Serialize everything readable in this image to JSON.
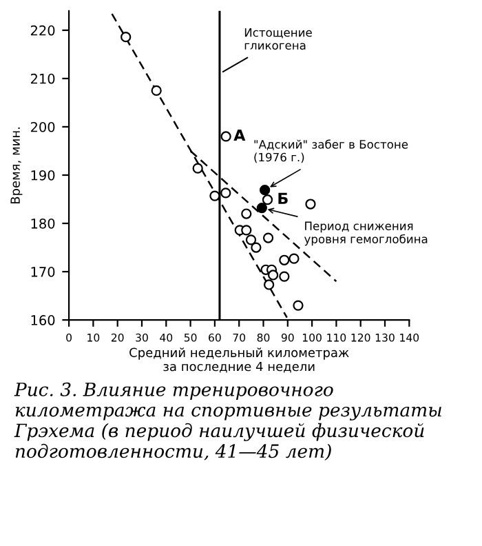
{
  "chart_data": {
    "type": "scatter",
    "xlabel": "Средний недельный километраж\nза последние 4 недели",
    "ylabel": "Время, мин.",
    "xlim": [
      0,
      140
    ],
    "xticks": [
      0,
      10,
      20,
      30,
      40,
      50,
      60,
      70,
      80,
      90,
      100,
      110,
      120,
      130,
      140
    ],
    "ylim": [
      160,
      224
    ],
    "yticks": [
      160,
      170,
      180,
      190,
      200,
      210,
      220
    ],
    "grid": false,
    "marker": "circle",
    "series": [
      {
        "color": "#ffffff",
        "x": [
          23.4,
          36,
          53,
          64.6,
          60,
          64.5,
          81.7,
          99.4,
          73,
          70.3,
          73,
          74.9,
          77,
          82,
          88.6,
          92.6,
          81,
          83.4,
          84,
          88.6,
          82.3,
          94.3
        ],
        "values": [
          218.6,
          207.5,
          191.4,
          198,
          185.7,
          186.3,
          184.9,
          184,
          182,
          178.6,
          178.6,
          176.6,
          175,
          177,
          172.4,
          172.7,
          170.4,
          170.4,
          169.3,
          169,
          167.3,
          163
        ]
      },
      {
        "color": "#000000",
        "x": [
          80.6,
          79.4
        ],
        "values": [
          186.9,
          183.2
        ]
      },
      {
        "type": "line",
        "color": "#000000",
        "line_style": "dashed",
        "marker": "none",
        "x": [
          17.7,
          89.7
        ],
        "values": [
          223.4,
          160.5
        ]
      },
      {
        "type": "line",
        "color": "#000000",
        "line_style": "dashed",
        "marker": "none",
        "x": [
          50,
          110
        ],
        "values": [
          195,
          168
        ]
      }
    ],
    "ref_lines": [
      {
        "axis": "x",
        "value": 62,
        "label": "Истощение\nгликогена",
        "color": "#000000",
        "line_style": "solid"
      }
    ],
    "annotations": [
      {
        "text": "А",
        "x": 64.6,
        "y": 198
      },
      {
        "text": "Б",
        "x": 81.7,
        "y": 184.9
      },
      {
        "text": "\"Адский\" забег в Бостоне\n(1976 г.)",
        "x": 80.6,
        "y": 186.9
      },
      {
        "text": "Период снижения\nуровня гемоглобина",
        "x": 79.4,
        "y": 183.2
      },
      "Рис. 3. Влияние тренировочного километража на спортивные результаты Грэхема (в период наилучшей физической подготовленности, 41—45 лет)"
    ]
  }
}
